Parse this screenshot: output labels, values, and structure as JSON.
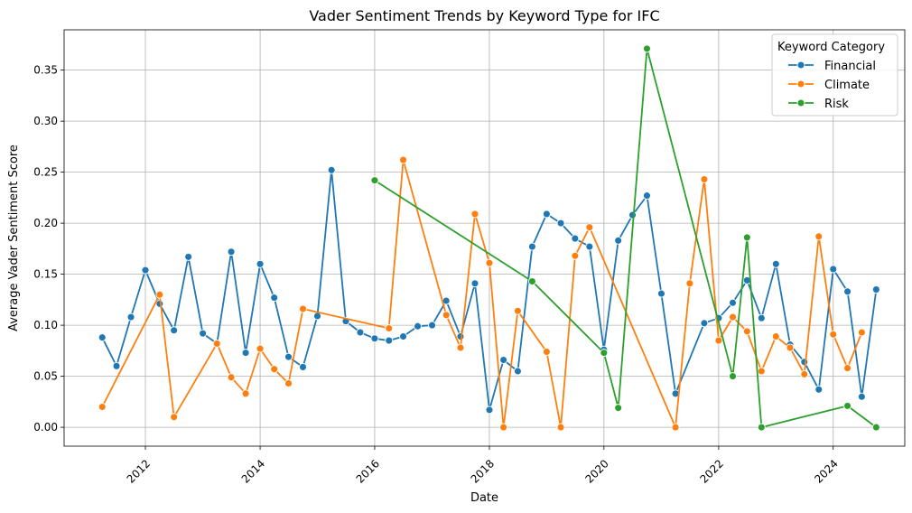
{
  "chart_data": {
    "type": "line",
    "title": "Vader Sentiment Trends by Keyword Type for IFC",
    "xlabel": "Date",
    "ylabel": "Average Vader Sentiment Score",
    "x_is_date": true,
    "xlim": [
      "2010-08-01",
      "2025-04-01"
    ],
    "ylim": [
      -0.0185,
      0.3895
    ],
    "x_ticks": [
      "2012",
      "2014",
      "2016",
      "2018",
      "2020",
      "2022",
      "2024"
    ],
    "x_tick_dates": [
      "2012-01-01",
      "2014-01-01",
      "2016-01-01",
      "2018-01-01",
      "2020-01-01",
      "2022-01-01",
      "2024-01-01"
    ],
    "y_ticks": [
      "0.00",
      "0.05",
      "0.10",
      "0.15",
      "0.20",
      "0.25",
      "0.30",
      "0.35"
    ],
    "y_tick_values": [
      0.0,
      0.05,
      0.1,
      0.15,
      0.2,
      0.25,
      0.3,
      0.35
    ],
    "grid": true,
    "legend": {
      "title": "Keyword Category",
      "placement": "top-right"
    },
    "series": [
      {
        "name": "Financial",
        "color": "#1f77b4",
        "points": [
          [
            "2011-04-01",
            0.088
          ],
          [
            "2011-07-01",
            0.06
          ],
          [
            "2011-10-01",
            0.108
          ],
          [
            "2012-01-01",
            0.154
          ],
          [
            "2012-04-01",
            0.121
          ],
          [
            "2012-07-01",
            0.095
          ],
          [
            "2012-10-01",
            0.167
          ],
          [
            "2013-01-01",
            0.092
          ],
          [
            "2013-04-01",
            0.082
          ],
          [
            "2013-07-01",
            0.172
          ],
          [
            "2013-10-01",
            0.073
          ],
          [
            "2014-01-01",
            0.16
          ],
          [
            "2014-04-01",
            0.127
          ],
          [
            "2014-07-01",
            0.069
          ],
          [
            "2014-10-01",
            0.059
          ],
          [
            "2015-01-01",
            0.109
          ],
          [
            "2015-04-01",
            0.252
          ],
          [
            "2015-07-01",
            0.104
          ],
          [
            "2015-10-01",
            0.093
          ],
          [
            "2016-01-01",
            0.087
          ],
          [
            "2016-04-01",
            0.085
          ],
          [
            "2016-07-01",
            0.089
          ],
          [
            "2016-10-01",
            0.099
          ],
          [
            "2017-01-01",
            0.1
          ],
          [
            "2017-04-01",
            0.124
          ],
          [
            "2017-07-01",
            0.089
          ],
          [
            "2017-10-01",
            0.141
          ],
          [
            "2018-01-01",
            0.017
          ],
          [
            "2018-04-01",
            0.066
          ],
          [
            "2018-07-01",
            0.055
          ],
          [
            "2018-10-01",
            0.177
          ],
          [
            "2019-01-01",
            0.209
          ],
          [
            "2019-04-01",
            0.2
          ],
          [
            "2019-07-01",
            0.185
          ],
          [
            "2019-10-01",
            0.177
          ],
          [
            "2020-01-01",
            0.076
          ],
          [
            "2020-04-01",
            0.183
          ],
          [
            "2020-07-01",
            0.208
          ],
          [
            "2020-10-01",
            0.227
          ],
          [
            "2021-01-01",
            0.131
          ],
          [
            "2021-04-01",
            0.033
          ],
          [
            "2021-10-01",
            0.102
          ],
          [
            "2022-01-01",
            0.107
          ],
          [
            "2022-04-01",
            0.122
          ],
          [
            "2022-07-01",
            0.144
          ],
          [
            "2022-10-01",
            0.107
          ],
          [
            "2023-01-01",
            0.16
          ],
          [
            "2023-04-01",
            0.081
          ],
          [
            "2023-07-01",
            0.064
          ],
          [
            "2023-10-01",
            0.037
          ],
          [
            "2024-01-01",
            0.155
          ],
          [
            "2024-04-01",
            0.133
          ],
          [
            "2024-07-01",
            0.03
          ],
          [
            "2024-10-01",
            0.135
          ]
        ]
      },
      {
        "name": "Climate",
        "color": "#ff7f0e",
        "points": [
          [
            "2011-04-01",
            0.02
          ],
          [
            "2012-04-01",
            0.13
          ],
          [
            "2012-07-01",
            0.01
          ],
          [
            "2013-04-01",
            0.082
          ],
          [
            "2013-07-01",
            0.049
          ],
          [
            "2013-10-01",
            0.033
          ],
          [
            "2014-01-01",
            0.077
          ],
          [
            "2014-04-01",
            0.057
          ],
          [
            "2014-07-01",
            0.043
          ],
          [
            "2014-10-01",
            0.116
          ],
          [
            "2016-04-01",
            0.097
          ],
          [
            "2016-07-01",
            0.262
          ],
          [
            "2017-04-01",
            0.11
          ],
          [
            "2017-07-01",
            0.078
          ],
          [
            "2017-10-01",
            0.209
          ],
          [
            "2018-01-01",
            0.161
          ],
          [
            "2018-04-01",
            0.0
          ],
          [
            "2018-07-01",
            0.114
          ],
          [
            "2019-01-01",
            0.074
          ],
          [
            "2019-04-01",
            0.0
          ],
          [
            "2019-07-01",
            0.168
          ],
          [
            "2019-10-01",
            0.196
          ],
          [
            "2021-04-01",
            0.0
          ],
          [
            "2021-07-01",
            0.141
          ],
          [
            "2021-10-01",
            0.243
          ],
          [
            "2022-01-01",
            0.085
          ],
          [
            "2022-04-01",
            0.108
          ],
          [
            "2022-07-01",
            0.094
          ],
          [
            "2022-10-01",
            0.055
          ],
          [
            "2023-01-01",
            0.089
          ],
          [
            "2023-04-01",
            0.078
          ],
          [
            "2023-07-01",
            0.052
          ],
          [
            "2023-10-01",
            0.187
          ],
          [
            "2024-01-01",
            0.091
          ],
          [
            "2024-04-01",
            0.058
          ],
          [
            "2024-07-01",
            0.093
          ]
        ]
      },
      {
        "name": "Risk",
        "color": "#2ca02c",
        "points": [
          [
            "2016-01-01",
            0.242
          ],
          [
            "2018-10-01",
            0.143
          ],
          [
            "2020-01-01",
            0.073
          ],
          [
            "2020-04-01",
            0.019
          ],
          [
            "2020-10-01",
            0.371
          ],
          [
            "2022-04-01",
            0.05
          ],
          [
            "2022-07-01",
            0.186
          ],
          [
            "2022-10-01",
            0.0
          ],
          [
            "2024-04-01",
            0.021
          ],
          [
            "2024-10-01",
            0.0
          ]
        ]
      }
    ]
  }
}
